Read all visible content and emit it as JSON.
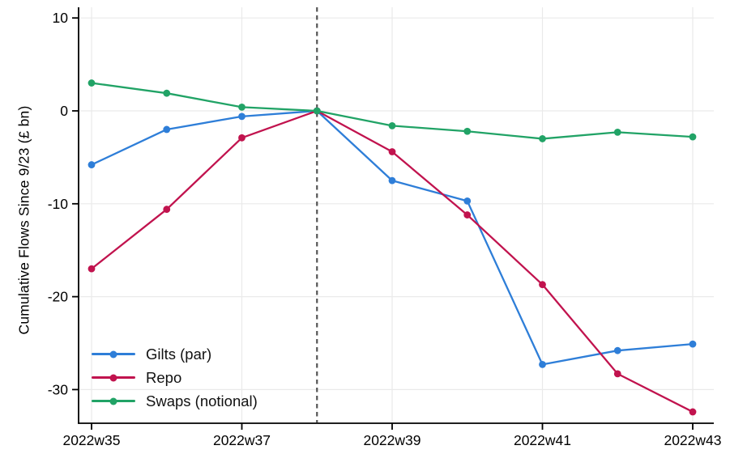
{
  "chart_data": {
    "type": "line",
    "title": "",
    "xlabel": "",
    "ylabel": "Cumulative Flows Since 9/23 (£ bn)",
    "categories": [
      "2022w35",
      "2022w36",
      "2022w37",
      "2022w38",
      "2022w39",
      "2022w40",
      "2022w41",
      "2022w42",
      "2022w43"
    ],
    "x_labeled_ticks": [
      "2022w35",
      "2022w37",
      "2022w39",
      "2022w41",
      "2022w43"
    ],
    "y_ticks": [
      10,
      0,
      -10,
      -20,
      -30
    ],
    "ylim": [
      -33.8,
      11.2
    ],
    "grid": true,
    "legend_position": "inside-bottom-left",
    "reference_line": {
      "type": "vertical",
      "at": "2022w38",
      "style": "dashed",
      "color": "#555555"
    },
    "series": [
      {
        "id": "gilts",
        "name": "Gilts (par)",
        "color": "#2e7ed8",
        "values": [
          -5.8,
          -2.0,
          -0.6,
          0,
          -7.5,
          -9.7,
          -27.3,
          -25.8,
          -25.1
        ]
      },
      {
        "id": "repo",
        "name": "Repo",
        "color": "#c1134e",
        "values": [
          -17.0,
          -10.6,
          -2.9,
          0,
          -4.4,
          -11.2,
          -18.7,
          -28.3,
          -32.4
        ]
      },
      {
        "id": "swaps",
        "name": "Swaps (notional)",
        "color": "#21a366",
        "values": [
          3.0,
          1.9,
          0.4,
          0,
          -1.6,
          -2.2,
          -3.0,
          -2.3,
          -2.8
        ]
      }
    ]
  },
  "colors": {
    "background": "#ffffff",
    "grid": "#eaeaea",
    "axis": "#000000",
    "tick_text": "#000000"
  }
}
